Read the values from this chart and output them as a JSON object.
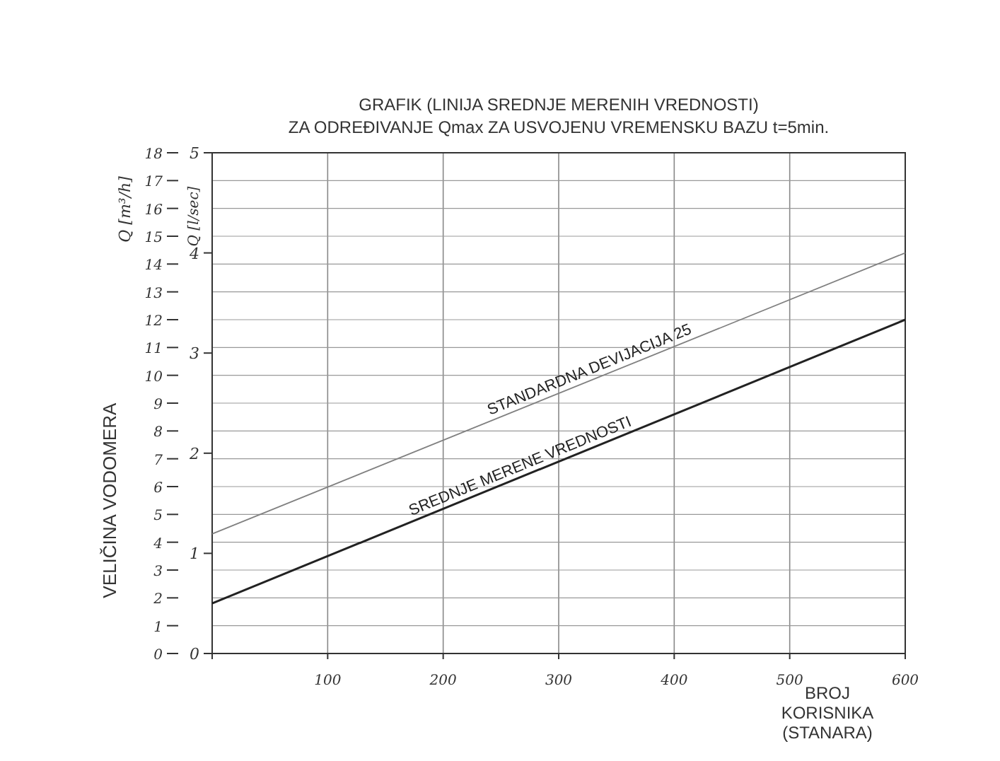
{
  "chart_data": {
    "type": "line",
    "title": "GRAFIK (LINIJA SREDNJE MERENIH VREDNOSTI)",
    "subtitle": "ZA ODREĐIVANJE Qmax ZA USVOJENU VREMENSKU BAZU t=5min.",
    "xlabel": "BROJ KORISNIKA (STANARA)",
    "ylabel": "Q [m³/h]",
    "y2label": "Q [l/sec]",
    "annotations": [
      "VELIČINA VODOMERA"
    ],
    "x": [
      0,
      600
    ],
    "series": [
      {
        "name": "STANDARDNA DEVIJACIJA 25",
        "color": "#808080",
        "values": [
          4.3,
          14.4
        ]
      },
      {
        "name": "SREDNJE MERENE VREDNOSTI",
        "color": "#222222",
        "values": [
          1.8,
          12
        ]
      }
    ],
    "xlim": [
      0,
      600
    ],
    "xticks": [
      {
        "value": 0,
        "label": null
      },
      100,
      200,
      300,
      400,
      500,
      600
    ],
    "ylim": [
      0,
      18
    ],
    "yticks": [
      0,
      1,
      2,
      3,
      4,
      5,
      6,
      7,
      8,
      9,
      10,
      11,
      12,
      13,
      14,
      15,
      16,
      17,
      18
    ],
    "y2lim": [
      0,
      5
    ],
    "y2ticks": [
      0,
      1,
      2,
      3,
      4,
      5
    ],
    "grid": true,
    "marker": "none",
    "line_style": "solid"
  }
}
